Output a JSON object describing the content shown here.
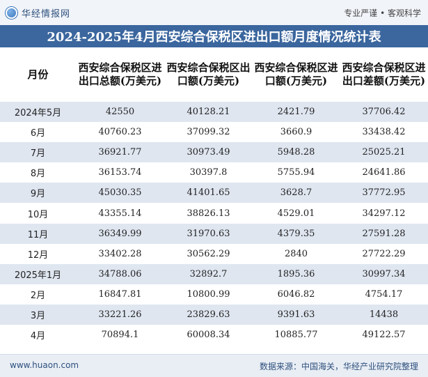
{
  "header": {
    "brand": "华经情报网",
    "slogan": "专业严谨 • 客观科学"
  },
  "title": "2024-2025年4月西安综合保税区进出口额月度情况统计表",
  "table": {
    "columns": [
      "月份",
      "西安综合保税区进出口总额(万美元)",
      "西安综合保税区出口额(万美元)",
      "西安综合保税区进口额(万美元)",
      "西安综合保税区进出口差额(万美元)"
    ],
    "rows": [
      [
        "2024年5月",
        "42550",
        "40128.21",
        "2421.79",
        "37706.42"
      ],
      [
        "6月",
        "40760.23",
        "37099.32",
        "3660.9",
        "33438.42"
      ],
      [
        "7月",
        "36921.77",
        "30973.49",
        "5948.28",
        "25025.21"
      ],
      [
        "8月",
        "36153.74",
        "30397.8",
        "5755.94",
        "24641.86"
      ],
      [
        "9月",
        "45030.35",
        "41401.65",
        "3628.7",
        "37772.95"
      ],
      [
        "10月",
        "43355.14",
        "38826.13",
        "4529.01",
        "34297.12"
      ],
      [
        "11月",
        "36349.99",
        "31970.63",
        "4379.35",
        "27591.28"
      ],
      [
        "12月",
        "33402.28",
        "30562.29",
        "2840",
        "27722.29"
      ],
      [
        "2025年1月",
        "34788.06",
        "32892.7",
        "1895.36",
        "30997.34"
      ],
      [
        "2月",
        "16847.81",
        "10800.99",
        "6046.82",
        "4754.17"
      ],
      [
        "3月",
        "33221.26",
        "23829.63",
        "9391.63",
        "14438"
      ],
      [
        "4月",
        "70894.1",
        "60008.34",
        "10885.77",
        "49122.57"
      ]
    ]
  },
  "footer": {
    "website": "www.huaon.com",
    "source": "数据来源：中国海关，华经产业研究院整理"
  },
  "colors": {
    "title_band": "#3b669e",
    "stripe": "#dfe6f0",
    "text_dark": "#2d4f7c"
  }
}
